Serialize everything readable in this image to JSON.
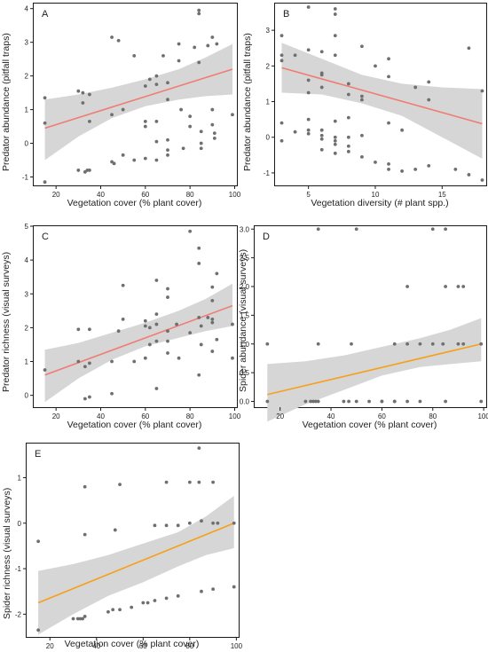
{
  "chart_data": [
    {
      "id": "A",
      "type": "scatter",
      "letter": "A",
      "xlabel": "Vegetation cover (% plant cover)",
      "ylabel": "Predator abundance (pitfall traps)",
      "xlim": [
        10,
        101
      ],
      "ylim": [
        -1.25,
        4.15
      ],
      "xticks": [
        20,
        40,
        60,
        80,
        100
      ],
      "yticks": [
        -1,
        0,
        1,
        2,
        3,
        4
      ],
      "line_color": "#f07c74",
      "fit": {
        "x": [
          15,
          99
        ],
        "y": [
          0.45,
          2.2
        ]
      },
      "band_upper": [
        [
          15,
          1.3
        ],
        [
          30,
          1.45
        ],
        [
          45,
          1.65
        ],
        [
          60,
          1.9
        ],
        [
          75,
          2.2
        ],
        [
          87,
          2.55
        ],
        [
          99,
          2.95
        ]
      ],
      "band_lower": [
        [
          15,
          -0.5
        ],
        [
          30,
          0.2
        ],
        [
          45,
          0.75
        ],
        [
          60,
          1.1
        ],
        [
          75,
          1.3
        ],
        [
          87,
          1.4
        ],
        [
          99,
          1.45
        ]
      ],
      "points": [
        [
          15,
          1.35
        ],
        [
          15,
          0.6
        ],
        [
          15,
          -1.15
        ],
        [
          30,
          1.55
        ],
        [
          30,
          -0.8
        ],
        [
          32,
          1.5
        ],
        [
          32,
          1.2
        ],
        [
          33,
          -0.85
        ],
        [
          34,
          -0.8
        ],
        [
          35,
          1.45
        ],
        [
          35,
          0.65
        ],
        [
          35,
          -0.8
        ],
        [
          45,
          3.15
        ],
        [
          45,
          0.85
        ],
        [
          45,
          -0.55
        ],
        [
          46,
          -0.6
        ],
        [
          48,
          3.05
        ],
        [
          50,
          1.0
        ],
        [
          50,
          -0.35
        ],
        [
          55,
          2.6
        ],
        [
          55,
          -0.5
        ],
        [
          60,
          1.7
        ],
        [
          60,
          0.65
        ],
        [
          60,
          0.5
        ],
        [
          60,
          -0.45
        ],
        [
          62,
          1.9
        ],
        [
          65,
          2.0
        ],
        [
          65,
          1.75
        ],
        [
          65,
          0.65
        ],
        [
          65,
          0.05
        ],
        [
          65,
          -0.5
        ],
        [
          68,
          2.6
        ],
        [
          70,
          1.8
        ],
        [
          70,
          1.3
        ],
        [
          70,
          0.1
        ],
        [
          70,
          -0.2
        ],
        [
          70,
          -0.35
        ],
        [
          75,
          2.95
        ],
        [
          75,
          2.45
        ],
        [
          76,
          1.0
        ],
        [
          77,
          -0.15
        ],
        [
          80,
          0.8
        ],
        [
          80,
          0.5
        ],
        [
          82,
          2.85
        ],
        [
          84,
          3.95
        ],
        [
          84,
          3.85
        ],
        [
          84,
          2.4
        ],
        [
          85,
          0.35
        ],
        [
          85,
          0.0
        ],
        [
          85,
          -0.15
        ],
        [
          88,
          2.9
        ],
        [
          90,
          3.15
        ],
        [
          90,
          1.0
        ],
        [
          90,
          0.55
        ],
        [
          91,
          0.3
        ],
        [
          91,
          0.15
        ],
        [
          92,
          2.95
        ],
        [
          99,
          0.85
        ]
      ]
    },
    {
      "id": "B",
      "type": "scatter",
      "letter": "B",
      "xlabel": "Vegetation diversity (# plant spp.)",
      "ylabel": "Predator abundance (pitfall traps)",
      "xlim": [
        2.5,
        18.3
      ],
      "ylim": [
        -1.35,
        3.75
      ],
      "xticks": [
        5,
        10,
        15
      ],
      "yticks": [
        -1,
        0,
        1,
        2,
        3
      ],
      "line_color": "#f07c74",
      "fit": {
        "x": [
          3,
          18
        ],
        "y": [
          1.95,
          0.38
        ]
      },
      "band_upper": [
        [
          3,
          2.65
        ],
        [
          6,
          2.2
        ],
        [
          9,
          1.75
        ],
        [
          12,
          1.5
        ],
        [
          15,
          1.4
        ],
        [
          18,
          1.35
        ]
      ],
      "band_lower": [
        [
          3,
          1.25
        ],
        [
          6,
          1.2
        ],
        [
          9,
          0.95
        ],
        [
          12,
          0.6
        ],
        [
          15,
          0.0
        ],
        [
          18,
          -0.6
        ]
      ],
      "points": [
        [
          3,
          2.85
        ],
        [
          3,
          2.3
        ],
        [
          3,
          2.15
        ],
        [
          3,
          0.4
        ],
        [
          3,
          -0.1
        ],
        [
          4,
          2.3
        ],
        [
          4,
          0.15
        ],
        [
          5,
          3.65
        ],
        [
          5,
          2.45
        ],
        [
          5,
          1.6
        ],
        [
          5,
          1.25
        ],
        [
          5,
          0.5
        ],
        [
          5,
          0.2
        ],
        [
          5,
          0.1
        ],
        [
          6,
          2.4
        ],
        [
          6,
          1.8
        ],
        [
          6,
          1.75
        ],
        [
          6,
          1.4
        ],
        [
          6,
          0.2
        ],
        [
          6,
          0.05
        ],
        [
          6,
          -0.05
        ],
        [
          6,
          -0.35
        ],
        [
          7,
          3.6
        ],
        [
          7,
          3.45
        ],
        [
          7,
          2.85
        ],
        [
          7,
          2.3
        ],
        [
          7,
          0.45
        ],
        [
          7,
          0.0
        ],
        [
          7,
          -0.1
        ],
        [
          7,
          -0.2
        ],
        [
          7,
          -0.45
        ],
        [
          8,
          1.5
        ],
        [
          8,
          1.2
        ],
        [
          8,
          0.55
        ],
        [
          8,
          0.0
        ],
        [
          8,
          -0.25
        ],
        [
          8,
          -0.4
        ],
        [
          9,
          2.55
        ],
        [
          9,
          1.15
        ],
        [
          9,
          1.05
        ],
        [
          9,
          0.05
        ],
        [
          9,
          -0.55
        ],
        [
          10,
          2.0
        ],
        [
          10,
          -0.7
        ],
        [
          11,
          2.2
        ],
        [
          11,
          1.7
        ],
        [
          11,
          0.4
        ],
        [
          11,
          -0.75
        ],
        [
          11,
          -0.9
        ],
        [
          12,
          0.2
        ],
        [
          12,
          -0.95
        ],
        [
          13,
          1.4
        ],
        [
          13,
          -0.9
        ],
        [
          14,
          1.55
        ],
        [
          14,
          1.05
        ],
        [
          14,
          -0.8
        ],
        [
          16,
          -0.9
        ],
        [
          17,
          2.5
        ],
        [
          17,
          -1.05
        ],
        [
          18,
          1.3
        ],
        [
          18,
          -1.2
        ]
      ]
    },
    {
      "id": "C",
      "type": "scatter",
      "letter": "C",
      "xlabel": "Vegetation cover (% plant cover)",
      "ylabel": "Predator richness (visual surveys)",
      "xlim": [
        10,
        101
      ],
      "ylim": [
        -0.35,
        5.0
      ],
      "xticks": [
        20,
        40,
        60,
        80,
        100
      ],
      "yticks": [
        0,
        1,
        2,
        3,
        4,
        5
      ],
      "line_color": "#f07c74",
      "fit": {
        "x": [
          15,
          99
        ],
        "y": [
          0.6,
          2.65
        ]
      },
      "band_upper": [
        [
          15,
          1.35
        ],
        [
          30,
          1.55
        ],
        [
          45,
          1.85
        ],
        [
          60,
          2.15
        ],
        [
          75,
          2.5
        ],
        [
          87,
          2.85
        ],
        [
          99,
          3.3
        ]
      ],
      "band_lower": [
        [
          15,
          -0.2
        ],
        [
          30,
          0.5
        ],
        [
          45,
          1.05
        ],
        [
          60,
          1.45
        ],
        [
          75,
          1.7
        ],
        [
          87,
          1.9
        ],
        [
          99,
          2.05
        ]
      ],
      "points": [
        [
          15,
          0.75
        ],
        [
          30,
          1.0
        ],
        [
          30,
          1.95
        ],
        [
          33,
          0.85
        ],
        [
          33,
          -0.1
        ],
        [
          35,
          1.95
        ],
        [
          35,
          0.95
        ],
        [
          35,
          -0.05
        ],
        [
          45,
          1.0
        ],
        [
          45,
          0.05
        ],
        [
          48,
          1.9
        ],
        [
          50,
          3.25
        ],
        [
          50,
          2.25
        ],
        [
          55,
          1.0
        ],
        [
          60,
          2.2
        ],
        [
          60,
          2.05
        ],
        [
          60,
          1.1
        ],
        [
          62,
          2.0
        ],
        [
          62,
          1.5
        ],
        [
          65,
          3.4
        ],
        [
          65,
          2.4
        ],
        [
          65,
          2.1
        ],
        [
          65,
          1.6
        ],
        [
          65,
          0.2
        ],
        [
          70,
          3.15
        ],
        [
          70,
          2.9
        ],
        [
          70,
          1.9
        ],
        [
          70,
          1.6
        ],
        [
          70,
          1.25
        ],
        [
          74,
          2.1
        ],
        [
          75,
          1.1
        ],
        [
          80,
          4.85
        ],
        [
          80,
          1.85
        ],
        [
          84,
          4.35
        ],
        [
          84,
          3.9
        ],
        [
          84,
          2.3
        ],
        [
          84,
          0.6
        ],
        [
          85,
          2.05
        ],
        [
          85,
          1.5
        ],
        [
          88,
          2.3
        ],
        [
          90,
          3.2
        ],
        [
          90,
          2.8
        ],
        [
          90,
          2.25
        ],
        [
          90,
          2.15
        ],
        [
          90,
          1.3
        ],
        [
          92,
          3.6
        ],
        [
          92,
          1.65
        ],
        [
          99,
          2.1
        ],
        [
          99,
          1.1
        ]
      ]
    },
    {
      "id": "D",
      "type": "scatter",
      "letter": "D",
      "xlabel": "Vegetation cover (% plant cover)",
      "ylabel": "Spider abundance (visual surveys)",
      "xlim": [
        10,
        101
      ],
      "ylim": [
        -0.1,
        3.05
      ],
      "xticks": [
        20,
        40,
        60,
        80,
        100
      ],
      "yticks": [
        0.0,
        0.5,
        1.0,
        1.5,
        2.0,
        2.5,
        3.0
      ],
      "ytick_labels": [
        "0.0",
        "0.5",
        "1.0",
        "1.5",
        "2.0",
        "2.5",
        "3.0"
      ],
      "line_color": "#f6a01a",
      "fit": {
        "x": [
          15,
          99
        ],
        "y": [
          0.12,
          1.0
        ]
      },
      "band_upper": [
        [
          15,
          0.65
        ],
        [
          30,
          0.7
        ],
        [
          45,
          0.8
        ],
        [
          60,
          0.95
        ],
        [
          75,
          1.1
        ],
        [
          87,
          1.25
        ],
        [
          99,
          1.45
        ]
      ],
      "band_lower": [
        [
          15,
          -0.35
        ],
        [
          30,
          -0.05
        ],
        [
          45,
          0.2
        ],
        [
          60,
          0.45
        ],
        [
          75,
          0.6
        ],
        [
          87,
          0.65
        ],
        [
          99,
          0.7
        ]
      ],
      "points": [
        [
          15,
          1.0
        ],
        [
          15,
          0.0
        ],
        [
          30,
          0.0
        ],
        [
          32,
          0.0
        ],
        [
          33,
          0.0
        ],
        [
          34,
          0.0
        ],
        [
          35,
          3.0
        ],
        [
          35,
          1.0
        ],
        [
          35,
          0.0
        ],
        [
          45,
          0.0
        ],
        [
          47,
          0.0
        ],
        [
          48,
          1.0
        ],
        [
          50,
          3.0
        ],
        [
          50,
          0.0
        ],
        [
          55,
          0.0
        ],
        [
          60,
          0.0
        ],
        [
          60,
          0.0
        ],
        [
          65,
          1.0
        ],
        [
          65,
          0.0
        ],
        [
          65,
          0.0
        ],
        [
          70,
          2.0
        ],
        [
          70,
          1.0
        ],
        [
          70,
          0.0
        ],
        [
          75,
          1.0
        ],
        [
          75,
          0.0
        ],
        [
          80,
          3.0
        ],
        [
          80,
          1.0
        ],
        [
          84,
          1.0
        ],
        [
          85,
          3.0
        ],
        [
          85,
          2.0
        ],
        [
          85,
          0.0
        ],
        [
          90,
          2.0
        ],
        [
          90,
          1.0
        ],
        [
          92,
          2.0
        ],
        [
          92,
          1.0
        ],
        [
          99,
          1.0
        ],
        [
          99,
          0.0
        ]
      ]
    },
    {
      "id": "E",
      "type": "scatter",
      "letter": "E",
      "xlabel": "Vegetation cover (% plant cover)",
      "ylabel": "Spider richness (visual surveys)",
      "xlim": [
        10,
        101
      ],
      "ylim": [
        -2.5,
        1.75
      ],
      "xticks": [
        20,
        40,
        60,
        80,
        100
      ],
      "yticks": [
        -2,
        -1,
        0,
        1
      ],
      "line_color": "#f6a01a",
      "fit": {
        "x": [
          15,
          99
        ],
        "y": [
          -1.75,
          0.0
        ]
      },
      "band_upper": [
        [
          15,
          -1.05
        ],
        [
          30,
          -0.9
        ],
        [
          45,
          -0.7
        ],
        [
          60,
          -0.45
        ],
        [
          75,
          -0.2
        ],
        [
          87,
          0.15
        ],
        [
          99,
          0.6
        ]
      ],
      "band_lower": [
        [
          15,
          -2.45
        ],
        [
          30,
          -2.0
        ],
        [
          45,
          -1.6
        ],
        [
          60,
          -1.3
        ],
        [
          75,
          -0.95
        ],
        [
          87,
          -0.7
        ],
        [
          99,
          -0.55
        ]
      ],
      "points": [
        [
          15,
          -0.4
        ],
        [
          15,
          -2.35
        ],
        [
          30,
          -2.1
        ],
        [
          32,
          -2.1
        ],
        [
          33,
          -2.1
        ],
        [
          34,
          -2.1
        ],
        [
          35,
          0.8
        ],
        [
          35,
          -0.25
        ],
        [
          35,
          -2.05
        ],
        [
          45,
          -1.95
        ],
        [
          47,
          -1.9
        ],
        [
          48,
          -0.15
        ],
        [
          50,
          0.85
        ],
        [
          50,
          -1.9
        ],
        [
          55,
          -1.85
        ],
        [
          60,
          -1.75
        ],
        [
          62,
          -1.75
        ],
        [
          65,
          -0.05
        ],
        [
          65,
          -1.7
        ],
        [
          70,
          0.9
        ],
        [
          70,
          -0.05
        ],
        [
          70,
          -1.65
        ],
        [
          75,
          -0.05
        ],
        [
          75,
          -1.6
        ],
        [
          80,
          0.9
        ],
        [
          80,
          0.0
        ],
        [
          84,
          1.65
        ],
        [
          84,
          0.9
        ],
        [
          85,
          0.05
        ],
        [
          85,
          -1.5
        ],
        [
          90,
          0.9
        ],
        [
          90,
          0.0
        ],
        [
          90,
          -1.45
        ],
        [
          92,
          0.0
        ],
        [
          99,
          0.0
        ],
        [
          99,
          -1.4
        ]
      ]
    }
  ]
}
